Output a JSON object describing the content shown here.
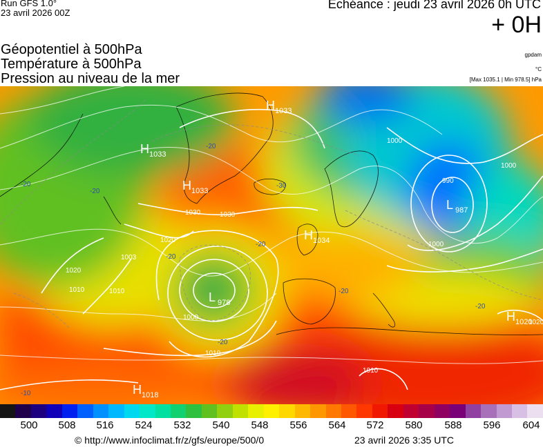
{
  "header": {
    "run": "Run GFS 1.0°",
    "run_date": "23 avril 2026 00Z",
    "echeance": "Echéance : jeudi 23 avril 2026 0h UTC",
    "horizon": "+ 0H",
    "title_lines": [
      "Géopotentiel à 500hPa",
      "Température à 500hPa",
      "Pression au niveau de la mer"
    ],
    "unit_gpdam": "gpdam",
    "unit_celsius": "°C",
    "pressure_range": "[Max 1035.1 | Min 978.5] hPa"
  },
  "map": {
    "region": "Europe / North Atlantic",
    "pressure_centers": [
      {
        "type": "H",
        "value": "1033"
      },
      {
        "type": "H",
        "value": "1033"
      },
      {
        "type": "H",
        "value": "1033"
      },
      {
        "type": "H",
        "value": "1034"
      },
      {
        "type": "H",
        "value": "1018"
      },
      {
        "type": "H",
        "value": "1020"
      },
      {
        "type": "L",
        "value": "987"
      },
      {
        "type": "L",
        "value": "978"
      },
      {
        "type": "L",
        "value": "1003"
      }
    ],
    "isobar_labels": [
      "1030",
      "1030",
      "1020",
      "1020",
      "1010",
      "1010",
      "1010",
      "1010",
      "1000",
      "1000",
      "1000",
      "1000",
      "990",
      "1020"
    ],
    "temperature_labels": [
      "-20",
      "-20",
      "-20",
      "-20",
      "-20",
      "-20",
      "-20",
      "-20",
      "-30",
      "-10"
    ]
  },
  "scale": {
    "labels": [
      "500",
      "508",
      "516",
      "524",
      "532",
      "540",
      "548",
      "556",
      "564",
      "572",
      "580",
      "588",
      "596",
      "604"
    ],
    "colors": [
      "#151515",
      "#20004a",
      "#1d0080",
      "#1000b8",
      "#0020f0",
      "#0060ff",
      "#0090ff",
      "#00b8ff",
      "#00d8f0",
      "#00e8c8",
      "#00e0a0",
      "#10d070",
      "#30c040",
      "#60c020",
      "#90d010",
      "#c0e000",
      "#e8f000",
      "#fff000",
      "#ffd800",
      "#ffb800",
      "#ff9800",
      "#ff7800",
      "#ff5800",
      "#ff3800",
      "#f01800",
      "#d80010",
      "#c00030",
      "#a80048",
      "#900060",
      "#7a0078",
      "#9040a0",
      "#a870b8",
      "#c09ad0",
      "#d8c0e4",
      "#ece0f0"
    ]
  },
  "footer": {
    "url": "© http://www.infoclimat.fr/z/gfs/europe/500/0",
    "timestamp": "23 avril 2026  3:35 UTC"
  }
}
